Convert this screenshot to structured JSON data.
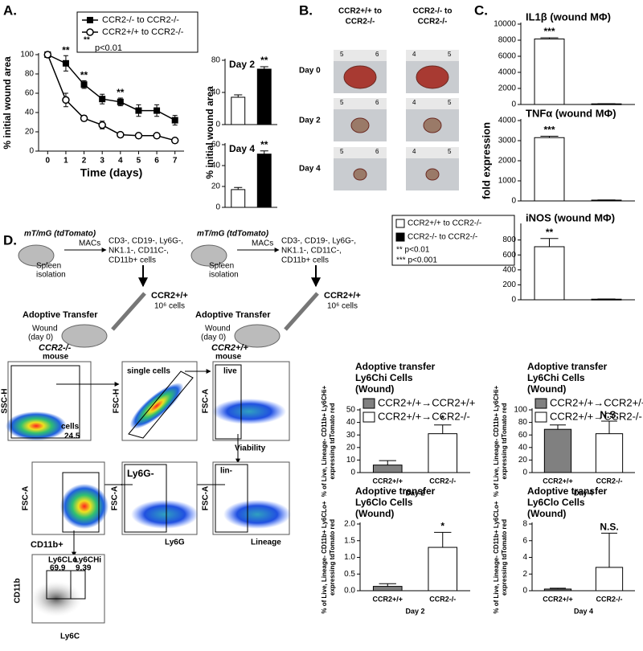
{
  "panel_labels": [
    "A.",
    "B.",
    "C.",
    "D."
  ],
  "chart_data": [
    {
      "type": "line",
      "x": [
        0,
        1,
        2,
        3,
        4,
        5,
        6,
        7
      ],
      "xlim": [
        -0.5,
        7.5
      ],
      "xticks": [
        0,
        1,
        2,
        3,
        4,
        5,
        6,
        7
      ],
      "ylim": [
        0,
        100
      ],
      "yticks": [
        0,
        20,
        40,
        60,
        80,
        100
      ],
      "xlabel": "Time (days)",
      "ylabel": "% initial wound area",
      "series": [
        {
          "name": "CCR2-/- to CCR2-/-",
          "color": "#000000",
          "marker": "square",
          "values": [
            100,
            91,
            69,
            54,
            51,
            42,
            42,
            32
          ],
          "errors": [
            0,
            8,
            4,
            5,
            4,
            6,
            6,
            5
          ]
        },
        {
          "name": "CCR2+/+ to CCR2-/-",
          "color": "#000000",
          "marker": "open-circle",
          "values": [
            100,
            53,
            34,
            27,
            17,
            16,
            16,
            11
          ],
          "errors": [
            0,
            7,
            3,
            4,
            2,
            2,
            2,
            2
          ]
        }
      ],
      "annotations": [
        {
          "x": 1,
          "text": "**"
        },
        {
          "x": 2,
          "text": "**"
        },
        {
          "x": 4,
          "text": "**"
        }
      ],
      "note": [
        "**",
        "p<0.01"
      ]
    },
    {
      "type": "bar",
      "title": "Day 2",
      "categories": [
        null,
        null
      ],
      "values": [
        34,
        69
      ],
      "errors": [
        3,
        3
      ],
      "colors": [
        "#ffffff",
        "#000000"
      ],
      "ylim": [
        0,
        80
      ],
      "yticks": [
        0,
        40,
        80
      ],
      "annotation": "**"
    },
    {
      "type": "bar",
      "title": "Day 4",
      "categories": [
        null,
        null
      ],
      "values": [
        17,
        51
      ],
      "errors": [
        2,
        3
      ],
      "colors": [
        "#ffffff",
        "#000000"
      ],
      "ylim": [
        0,
        60
      ],
      "yticks": [
        0,
        20,
        40,
        60
      ],
      "annotation": "**"
    },
    {
      "type": "bar",
      "title": "IL1β (wound MΦ)",
      "categories": [
        null,
        null
      ],
      "values": [
        8150,
        80
      ],
      "errors": [
        150,
        20
      ],
      "colors": [
        "#ffffff",
        "#000000"
      ],
      "ylim": [
        0,
        10000
      ],
      "yticks": [
        0,
        2000,
        4000,
        6000,
        8000,
        10000
      ],
      "annotation": "***"
    },
    {
      "type": "bar",
      "title": "TNFα (wound MΦ)",
      "categories": [
        null,
        null
      ],
      "values": [
        3150,
        40
      ],
      "errors": [
        70,
        10
      ],
      "colors": [
        "#ffffff",
        "#000000"
      ],
      "ylim": [
        0,
        4000
      ],
      "yticks": [
        0,
        1000,
        2000,
        3000,
        4000
      ],
      "annotation": "***"
    },
    {
      "type": "bar",
      "title": "iNOS (wound MΦ)",
      "categories": [
        null,
        null
      ],
      "values": [
        710,
        8
      ],
      "errors": [
        110,
        3
      ],
      "colors": [
        "#ffffff",
        "#000000"
      ],
      "ylim": [
        0,
        1000
      ],
      "yticks": [
        0,
        200,
        400,
        600,
        800
      ],
      "annotation": "**"
    },
    {
      "type": "bar",
      "title": [
        "Adoptive transfer",
        "Ly6Chi Cells",
        "(Wound)"
      ],
      "legend": [
        {
          "label": "CCR2+/+→CCR2+/+",
          "color": "#808080"
        },
        {
          "label": "CCR2+/+→CCR2-/-",
          "color": "#ffffff"
        }
      ],
      "categories": [
        "CCR2+/+",
        "CCR2-/-"
      ],
      "values": [
        6,
        31
      ],
      "errors": [
        3.5,
        7
      ],
      "colors": [
        "#808080",
        "#ffffff"
      ],
      "ylim": [
        0,
        50
      ],
      "yticks": [
        0,
        10,
        20,
        30,
        40,
        50
      ],
      "xlabel": "Day 2",
      "ylabel": [
        "% of Live, Lineage- CD11b+ Ly6CHi+",
        "expressing tdTomato red"
      ],
      "annotation": "*"
    },
    {
      "type": "bar",
      "title": [
        "Adoptive transfer",
        "Ly6Chi Cells",
        "(Wound)"
      ],
      "legend": [
        {
          "label": "CCR2+/+→CCR2+/+",
          "color": "#808080"
        },
        {
          "label": "CCR2+/+→CCR2-/-",
          "color": "#ffffff"
        }
      ],
      "categories": [
        "CCR2+/+",
        "CCR2-/-"
      ],
      "values": [
        69,
        62
      ],
      "errors": [
        7,
        20
      ],
      "colors": [
        "#808080",
        "#ffffff"
      ],
      "ylim": [
        0,
        100
      ],
      "yticks": [
        0,
        20,
        40,
        60,
        80,
        100
      ],
      "xlabel": "Day 4",
      "ylabel": [
        "% of Live, Lineage- CD11b+ Ly6CHi+",
        "expressing tdTomato red"
      ],
      "annotation": "N.S."
    },
    {
      "type": "bar",
      "title": [
        "Adoptive transfer",
        "Ly6Clo Cells",
        "(Wound)"
      ],
      "categories": [
        "CCR2+/+",
        "CCR2-/-"
      ],
      "values": [
        0.13,
        1.3
      ],
      "errors": [
        0.08,
        0.45
      ],
      "colors": [
        "#808080",
        "#ffffff"
      ],
      "ylim": [
        0,
        2
      ],
      "yticks": [
        {
          "value": 0,
          "label": "0.0"
        },
        {
          "value": 0.5,
          "label": "0.5"
        },
        {
          "value": 1,
          "label": "1.0"
        },
        {
          "value": 1.5,
          "label": "1.5"
        },
        {
          "value": 2,
          "label": "2.0"
        }
      ],
      "xlabel": "Day 2",
      "ylabel": [
        "% of Live, Lineage- CD11b+ Ly6CLo+",
        "expressing tdTomato red"
      ],
      "annotation": "*"
    },
    {
      "type": "bar",
      "title": [
        "Adoptive transfer",
        "Ly6Clo Cells",
        "(Wound)"
      ],
      "categories": [
        "CCR2+/+",
        "CCR2-/-"
      ],
      "values": [
        0.2,
        2.8
      ],
      "errors": [
        0.1,
        4.1
      ],
      "colors": [
        "#808080",
        "#ffffff"
      ],
      "ylim": [
        0,
        8
      ],
      "yticks": [
        0,
        2,
        4,
        6,
        8
      ],
      "xlabel": "Day 4",
      "ylabel": [
        "% of Live, Lineage- CD11b+ Ly6CLo+",
        "expressing tdTomato red"
      ],
      "annotation": "N.S."
    }
  ],
  "panel_a": {
    "bar_ylabel": "% initial wound area"
  },
  "panel_b": {
    "columns": [
      [
        "CCR2+/+ to",
        "CCR2-/-"
      ],
      [
        "CCR2-/- to",
        "CCR2-/-"
      ]
    ],
    "rows": [
      "Day 0",
      "Day 2",
      "Day 4"
    ],
    "rulers": [
      [
        "5",
        "6"
      ],
      [
        "4",
        "5"
      ]
    ],
    "legend": [
      "CCR2+/+ to CCR2-/-",
      "CCR2-/- to CCR2-/-"
    ],
    "notes": [
      "** p<0.01",
      "*** p<0.001"
    ]
  },
  "panel_c": {
    "ylabel": "fold expression"
  },
  "panel_d": {
    "schemes": [
      {
        "title": "mT/mG (tdTomato)",
        "method": "MACs",
        "cells": [
          "CD3-, CD19-, Ly6G-,",
          "NK1.1-, CD11C-,",
          "CD11b+ cells"
        ],
        "source": [
          "Spleen",
          "isolation"
        ],
        "donor": [
          "CCR2+/+",
          "10⁶ cells"
        ],
        "step": "Adoptive Transfer",
        "wound": [
          "Wound",
          "(day 0)"
        ],
        "recipient": [
          "CCR2-/-",
          "mouse"
        ]
      },
      {
        "title": "mT/mG (tdTomato)",
        "method": "MACs",
        "cells": [
          "CD3-, CD19-, Ly6G-,",
          "NK1.1-, CD11C-,",
          "CD11b+ cells"
        ],
        "source": [
          "Spleen",
          "isolation"
        ],
        "donor": [
          "CCR2+/+",
          "10⁶ cells"
        ],
        "step": "Adoptive Transfer",
        "wound": [
          "Wound",
          "(day 0)"
        ],
        "recipient": [
          "CCR2+/+",
          "mouse"
        ]
      }
    ],
    "flow": {
      "cells_y": "SSC-H",
      "cells_gate": "cells",
      "cells_pct": "24.5",
      "single_gate": "single cells",
      "single_y": "FSC-H",
      "live_gate": "live",
      "live_y": "FSC-A",
      "live_x": "Viability",
      "lin_gate": "lin-",
      "lin_y": "FSC-A",
      "lin_x": "Lineage",
      "ly6g_gate": "Ly6G-",
      "ly6g_y": "FSC-A",
      "ly6g_x": "Ly6G",
      "cd11b_y": "FSC-A",
      "cd11b_x": "CD11b+",
      "ly6c_y": "CD11b",
      "ly6c_x": "Ly6C",
      "lo_gate": "Ly6CLo",
      "lo_pct": "69.9",
      "hi_gate": "Ly6CHi",
      "hi_pct": "9.39"
    }
  }
}
